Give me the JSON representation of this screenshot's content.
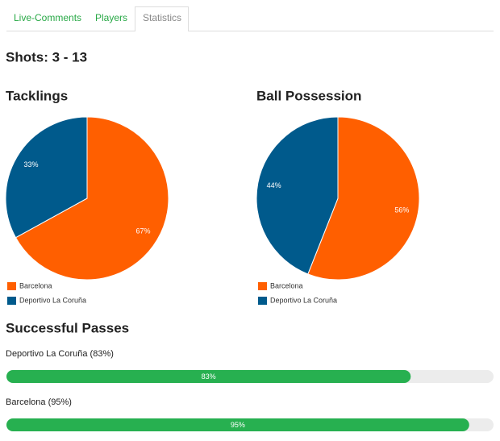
{
  "tabs": [
    "Live-Comments",
    "Players",
    "Statistics"
  ],
  "shots": "Shots: 3 - 13",
  "chart_data": [
    {
      "type": "pie",
      "title": "Tacklings",
      "categories": [
        "Barcelona",
        "Deportivo La Coruña"
      ],
      "values": [
        67,
        33
      ],
      "value_labels": [
        "67%",
        "33%"
      ],
      "colors": [
        "#ff5f00",
        "#005a8c"
      ]
    },
    {
      "type": "pie",
      "title": "Ball Possession",
      "categories": [
        "Barcelona",
        "Deportivo La Coruña"
      ],
      "values": [
        56,
        44
      ],
      "value_labels": [
        "56%",
        "44%"
      ],
      "colors": [
        "#ff5f00",
        "#005a8c"
      ]
    },
    {
      "type": "progress",
      "title": "Successful Passes",
      "categories": [
        "Deportivo La Coruña (83%)",
        "Barcelona (95%)"
      ],
      "values": [
        83,
        95
      ],
      "value_labels": [
        "83%",
        "95%"
      ],
      "xlim": [
        0,
        100
      ],
      "color": "#27b050",
      "track_color": "#ececec"
    }
  ]
}
